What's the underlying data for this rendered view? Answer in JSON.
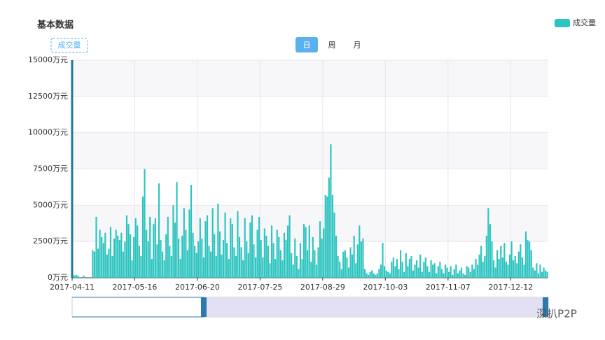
{
  "chart_data": {
    "type": "bar",
    "title": "基本数据",
    "mode_label": "成交量",
    "buttons": [
      "日",
      "周",
      "月"
    ],
    "watermark": "深扒P2P",
    "grid": true,
    "legend": "top-right",
    "categories": [
      "2017-04-11",
      null,
      null,
      null,
      null,
      null,
      null,
      null,
      null,
      null,
      null,
      null,
      null,
      null,
      null,
      null,
      null,
      null,
      null,
      null,
      null,
      null,
      null,
      null,
      null,
      null,
      null,
      null,
      null,
      null,
      null,
      null,
      null,
      null,
      null,
      "2017-05-16",
      null,
      null,
      null,
      null,
      null,
      null,
      null,
      null,
      null,
      null,
      null,
      null,
      null,
      null,
      null,
      null,
      null,
      null,
      null,
      null,
      null,
      null,
      null,
      null,
      null,
      null,
      null,
      null,
      null,
      null,
      null,
      null,
      null,
      null,
      "2017-06-20",
      null,
      null,
      null,
      null,
      null,
      null,
      null,
      null,
      null,
      null,
      null,
      null,
      null,
      null,
      null,
      null,
      null,
      null,
      null,
      null,
      null,
      null,
      null,
      null,
      null,
      null,
      null,
      null,
      null,
      null,
      null,
      null,
      null,
      null,
      "2017-07-25",
      null,
      null,
      null,
      null,
      null,
      null,
      null,
      null,
      null,
      null,
      null,
      null,
      null,
      null,
      null,
      null,
      null,
      null,
      null,
      null,
      null,
      null,
      null,
      null,
      null,
      null,
      null,
      null,
      null,
      null,
      null,
      null,
      null,
      null,
      "2017-08-29",
      null,
      null,
      null,
      null,
      null,
      null,
      null,
      null,
      null,
      null,
      null,
      null,
      null,
      null,
      null,
      null,
      null,
      null,
      null,
      null,
      null,
      null,
      null,
      null,
      null,
      null,
      null,
      null,
      null,
      null,
      null,
      null,
      null,
      null,
      "2017-10-03",
      null,
      null,
      null,
      null,
      null,
      null,
      null,
      null,
      null,
      null,
      null,
      null,
      null,
      null,
      null,
      null,
      null,
      null,
      null,
      null,
      null,
      null,
      null,
      null,
      null,
      null,
      null,
      null,
      null,
      null,
      null,
      null,
      null,
      null,
      "2017-11-07",
      null,
      null,
      null,
      null,
      null,
      null,
      null,
      null,
      null,
      null,
      null,
      null,
      null,
      null,
      null,
      null,
      null,
      null,
      null,
      null,
      null,
      null,
      null,
      null,
      null,
      null,
      null,
      null,
      null,
      null,
      null,
      null,
      null,
      null,
      "2017-12-12",
      null,
      null,
      null,
      null,
      null,
      null,
      null,
      null,
      null,
      null,
      null,
      null,
      null,
      null,
      null,
      null,
      null,
      null,
      null,
      null
    ],
    "series": [
      {
        "name": "成交量",
        "color": "#2ec4c0",
        "values": [
          200,
          150,
          200,
          100,
          0,
          0,
          150,
          0,
          0,
          0,
          0,
          1900,
          1800,
          4200,
          2000,
          3300,
          2800,
          2400,
          3100,
          1600,
          2000,
          3500,
          1500,
          2700,
          3300,
          2900,
          2600,
          3100,
          1800,
          2500,
          4300,
          3700,
          3000,
          1200,
          2800,
          4100,
          3600,
          2200,
          1500,
          5600,
          7500,
          3300,
          2500,
          4200,
          1300,
          3700,
          4100,
          2300,
          6500,
          2600,
          1800,
          1200,
          3000,
          4200,
          2200,
          1500,
          5000,
          3800,
          6600,
          2700,
          1300,
          2900,
          4800,
          3300,
          1900,
          4700,
          6400,
          3100,
          2200,
          1700,
          2500,
          4100,
          2700,
          1400,
          3900,
          4300,
          2200,
          1800,
          4800,
          3000,
          1500,
          5100,
          3200,
          1600,
          2600,
          4500,
          2400,
          1300,
          4100,
          3700,
          2100,
          1500,
          4600,
          2800,
          2100,
          1200,
          4100,
          2500,
          1700,
          3800,
          4300,
          2300,
          1400,
          3300,
          4200,
          2600,
          1400,
          3400,
          2900,
          2200,
          1000,
          3600,
          2400,
          1300,
          3300,
          2800,
          1900,
          1200,
          3100,
          2600,
          3600,
          4300,
          1700,
          900,
          2700,
          1500,
          600,
          2400,
          1300,
          3700,
          3500,
          1900,
          3600,
          1100,
          2800,
          1900,
          900,
          2100,
          3900,
          2700,
          3400,
          5700,
          5600,
          6900,
          9200,
          5700,
          4500,
          2900,
          1500,
          1100,
          600,
          1800,
          1900,
          1400,
          700,
          2100,
          1600,
          2900,
          1000,
          2300,
          3600,
          2500,
          2700,
          600,
          300,
          200,
          400,
          500,
          300,
          200,
          300,
          600,
          900,
          2400,
          800,
          500,
          400,
          300,
          1100,
          1400,
          800,
          1300,
          600,
          1900,
          1100,
          400,
          1700,
          800,
          1300,
          1500,
          500,
          900,
          1200,
          700,
          1600,
          400,
          1100,
          1400,
          800,
          400,
          1200,
          900,
          1000,
          300,
          800,
          1100,
          600,
          300,
          900,
          700,
          400,
          800,
          200,
          600,
          900,
          300,
          500,
          700,
          300,
          200,
          800,
          700,
          400,
          900,
          600,
          1300,
          900,
          1600,
          2200,
          1100,
          1500,
          2900,
          4800,
          3700,
          2500,
          1200,
          700,
          1900,
          1300,
          2200,
          1400,
          2400,
          1100,
          900,
          1600,
          2500,
          1200,
          1500,
          1000,
          1800,
          2300,
          1400,
          900,
          3200,
          2600,
          2500,
          1900,
          700,
          500,
          1000,
          300,
          900,
          400,
          700,
          500,
          400
        ]
      }
    ],
    "ylim": [
      0,
      15000
    ],
    "yticks": [
      {
        "value": 0,
        "label": "0万元"
      },
      {
        "value": 2500,
        "label": "2500万元"
      },
      {
        "value": 5000,
        "label": "5000万元"
      },
      {
        "value": 7500,
        "label": "7500万元"
      },
      {
        "value": 10000,
        "label": "10000万元"
      },
      {
        "value": 12500,
        "label": "12500万元"
      },
      {
        "value": 15000,
        "label": "15000万元"
      }
    ]
  }
}
